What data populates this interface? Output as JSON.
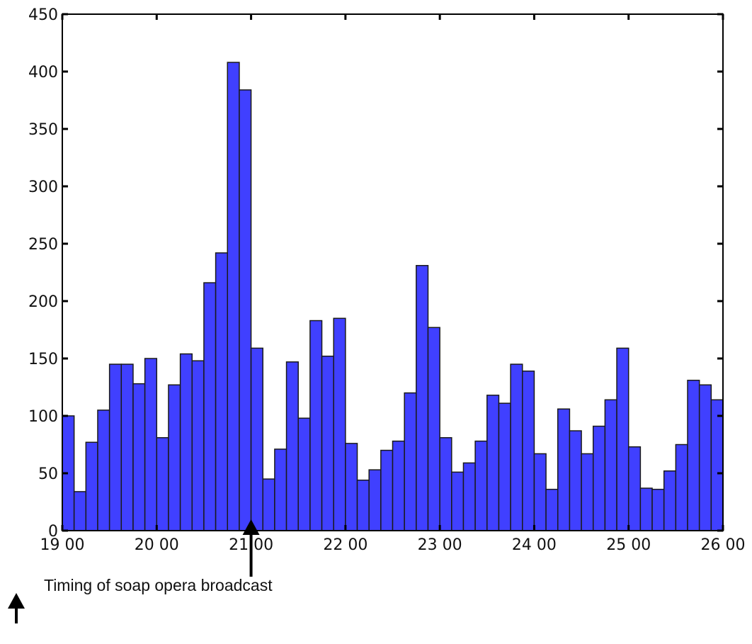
{
  "chart_data": {
    "type": "bar",
    "title": "",
    "xlabel": "",
    "ylabel": "",
    "ylim": [
      0,
      450
    ],
    "xlim": [
      19,
      26
    ],
    "grid": false,
    "bar_color": "#4040ff",
    "edge_color": "#1a1a1a",
    "y_ticks": [
      0,
      50,
      100,
      150,
      200,
      250,
      300,
      350,
      400,
      450
    ],
    "x_ticks": [
      {
        "value": 19,
        "label": "19 00"
      },
      {
        "value": 20,
        "label": "20 00"
      },
      {
        "value": 21,
        "label": "21 00"
      },
      {
        "value": 22,
        "label": "22 00"
      },
      {
        "value": 23,
        "label": "23 00"
      },
      {
        "value": 24,
        "label": "24 00"
      },
      {
        "value": 25,
        "label": "25 00"
      },
      {
        "value": 26,
        "label": "26 00"
      }
    ],
    "bin_start": 19,
    "bin_width": 0.125,
    "values": [
      100,
      34,
      77,
      105,
      145,
      145,
      128,
      150,
      81,
      127,
      154,
      148,
      216,
      242,
      408,
      384,
      159,
      45,
      71,
      147,
      98,
      183,
      152,
      185,
      76,
      44,
      53,
      70,
      78,
      120,
      231,
      177,
      81,
      51,
      59,
      78,
      118,
      111,
      145,
      139,
      67,
      36,
      106,
      87,
      67,
      91,
      114,
      159,
      73,
      37,
      36,
      52,
      75,
      131,
      127,
      114
    ],
    "annotation": {
      "x": 21,
      "text": "Timing of soap opera broadcast"
    }
  }
}
